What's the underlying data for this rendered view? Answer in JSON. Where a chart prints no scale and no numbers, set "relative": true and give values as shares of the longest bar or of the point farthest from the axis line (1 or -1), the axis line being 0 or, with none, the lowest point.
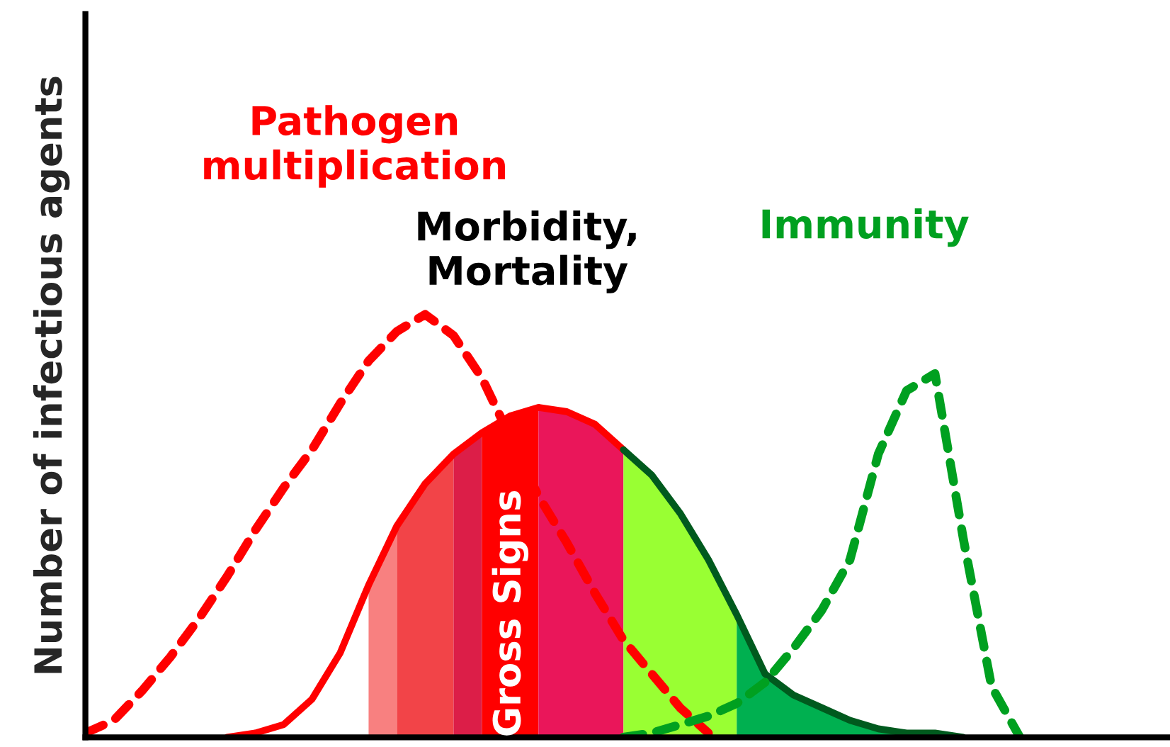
{
  "chart_data": {
    "type": "line",
    "relative": true,
    "ylabel": "Number of infectious agents",
    "legend": false,
    "categories": [
      null,
      null,
      null,
      null,
      null,
      null,
      null,
      null,
      null,
      null,
      null,
      null,
      null,
      null,
      null,
      null,
      null,
      null,
      null,
      null,
      null,
      null,
      null,
      null,
      null,
      null,
      null,
      null,
      null,
      null,
      null,
      null,
      null,
      null,
      null,
      null,
      null,
      null,
      null
    ],
    "annotations": [
      "Morbidity,\nMortality",
      "Gross Signs"
    ],
    "series": [
      {
        "type": "area",
        "color": "#f88080",
        "values": [
          null,
          null,
          null,
          null,
          null,
          null,
          null,
          null,
          null,
          null,
          0.36,
          0.5,
          null,
          null,
          null,
          null,
          null,
          null,
          null,
          null,
          null,
          null,
          null,
          null,
          null,
          null,
          null,
          null,
          null,
          null,
          null,
          null,
          null,
          null,
          null,
          null,
          null,
          null,
          null
        ]
      },
      {
        "type": "area",
        "color": "#f24448",
        "values": [
          null,
          null,
          null,
          null,
          null,
          null,
          null,
          null,
          null,
          null,
          null,
          0.5,
          0.6,
          0.67,
          null,
          null,
          null,
          null,
          null,
          null,
          null,
          null,
          null,
          null,
          null,
          null,
          null,
          null,
          null,
          null,
          null,
          null,
          null,
          null,
          null,
          null,
          null,
          null,
          null
        ]
      },
      {
        "type": "area",
        "color": "#dc1e48",
        "values": [
          null,
          null,
          null,
          null,
          null,
          null,
          null,
          null,
          null,
          null,
          null,
          null,
          null,
          0.67,
          0.72,
          null,
          null,
          null,
          null,
          null,
          null,
          null,
          null,
          null,
          null,
          null,
          null,
          null,
          null,
          null,
          null,
          null,
          null,
          null,
          null,
          null,
          null,
          null,
          null
        ]
      },
      {
        "type": "area",
        "color": "#ff0000",
        "values": [
          null,
          null,
          null,
          null,
          null,
          null,
          null,
          null,
          null,
          null,
          null,
          null,
          null,
          null,
          0.72,
          0.76,
          0.78,
          null,
          null,
          null,
          null,
          null,
          null,
          null,
          null,
          null,
          null,
          null,
          null,
          null,
          null,
          null,
          null,
          null,
          null,
          null,
          null,
          null,
          null
        ]
      },
      {
        "type": "area",
        "color": "#ea165a",
        "values": [
          null,
          null,
          null,
          null,
          null,
          null,
          null,
          null,
          null,
          null,
          null,
          null,
          null,
          null,
          null,
          null,
          0.78,
          0.77,
          0.74,
          0.68,
          null,
          null,
          null,
          null,
          null,
          null,
          null,
          null,
          null,
          null,
          null,
          null,
          null,
          null,
          null,
          null,
          null,
          null,
          null
        ]
      },
      {
        "type": "area",
        "color": "#99ff33",
        "values": [
          null,
          null,
          null,
          null,
          null,
          null,
          null,
          null,
          null,
          null,
          null,
          null,
          null,
          null,
          null,
          null,
          null,
          null,
          null,
          0.68,
          0.62,
          0.53,
          0.42,
          0.29,
          null,
          null,
          null,
          null,
          null,
          null,
          null,
          null,
          null,
          null,
          null,
          null,
          null,
          null,
          null
        ]
      },
      {
        "type": "area",
        "color": "#00b050",
        "values": [
          null,
          null,
          null,
          null,
          null,
          null,
          null,
          null,
          null,
          null,
          null,
          null,
          null,
          null,
          null,
          null,
          null,
          null,
          null,
          null,
          null,
          null,
          null,
          0.29,
          0.15,
          0.1,
          0.07,
          0.04,
          0.02,
          0.01,
          0.01,
          0,
          null,
          null,
          null,
          null,
          null,
          null,
          null
        ]
      },
      {
        "color": "#ff0000",
        "line_style": "solid",
        "values": [
          null,
          null,
          null,
          null,
          null,
          0,
          0.01,
          0.03,
          0.09,
          0.2,
          0.36,
          0.5,
          0.6,
          0.67,
          0.72,
          0.76,
          0.78,
          0.77,
          0.74,
          0.68,
          null,
          null,
          null,
          null,
          null,
          null,
          null,
          null,
          null,
          null,
          null,
          null,
          null,
          null,
          null,
          null,
          null,
          null,
          null
        ]
      },
      {
        "color": "#005a1e",
        "line_style": "solid",
        "values": [
          null,
          null,
          null,
          null,
          null,
          null,
          null,
          null,
          null,
          null,
          null,
          null,
          null,
          null,
          null,
          null,
          null,
          null,
          null,
          0.68,
          0.62,
          0.53,
          0.42,
          0.29,
          0.15,
          0.1,
          0.07,
          0.04,
          0.02,
          0.01,
          0.01,
          0,
          null,
          null,
          null,
          null,
          null,
          null,
          null
        ]
      },
      {
        "name": "Pathogen\nmultiplication",
        "color": "#ff0000",
        "line_style": "dashed",
        "values": [
          0.01,
          0.04,
          0.11,
          0.19,
          0.28,
          0.38,
          0.49,
          0.59,
          0.68,
          0.79,
          0.89,
          0.96,
          1.0,
          0.95,
          0.85,
          0.71,
          0.57,
          0.46,
          0.34,
          0.23,
          0.15,
          0.07,
          0.01,
          null,
          null,
          null,
          null,
          null,
          null,
          null,
          null,
          null,
          null,
          null,
          null,
          null,
          null,
          null,
          null
        ]
      },
      {
        "name": "Immunity",
        "color": "#00a020",
        "line_style": "dashed",
        "values": [
          null,
          null,
          null,
          null,
          null,
          null,
          null,
          null,
          null,
          null,
          null,
          null,
          null,
          null,
          null,
          null,
          null,
          null,
          null,
          0,
          0.01,
          0.03,
          0.05,
          0.08,
          0.13,
          0.21,
          0.3,
          0.42,
          0.67,
          0.82,
          0.86,
          0.47,
          0.12,
          0,
          null,
          null,
          null,
          null,
          null
        ]
      }
    ]
  }
}
